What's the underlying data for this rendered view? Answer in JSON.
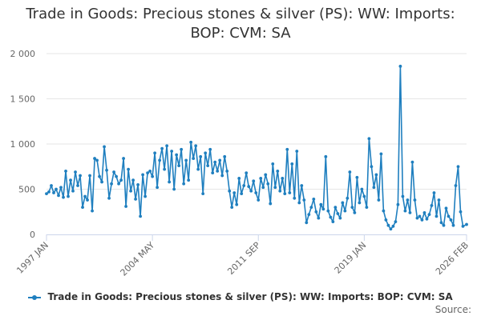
{
  "title_line1": "Trade in Goods: Precious stones & silver (PS): WW: Imports:",
  "title_line2": "BOP: CVM: SA",
  "source_label": "Source:",
  "colors": {
    "series": "#1f7fbf",
    "grid": "#e6e6e6",
    "axis": "#ccd6eb"
  },
  "chart_data": {
    "type": "line",
    "title": "Trade in Goods: Precious stones & silver (PS): WW: Imports: BOP: CVM: SA",
    "x_range": [
      "1997 JAN",
      "2026 FEB"
    ],
    "x_tick_labels": [
      "1997 JAN",
      "2004 MAY",
      "2011 SEP",
      "2019 JAN",
      "2026 FEB"
    ],
    "y_ticks": [
      0,
      500,
      1000,
      1500,
      2000
    ],
    "y_tick_labels": [
      "0",
      "500",
      "1 000",
      "1 500",
      "2 000"
    ],
    "ylim": [
      0,
      2000
    ],
    "grid": true,
    "legend_position": "bottom",
    "series": [
      {
        "name": "Trade in Goods: Precious stones & silver (PS): WW: Imports: BOP: CVM: SA",
        "points": [
          [
            "1997 JAN",
            450
          ],
          [
            "1997 MAR",
            470
          ],
          [
            "1997 MAY",
            540
          ],
          [
            "1997 JUL",
            460
          ],
          [
            "1997 SEP",
            500
          ],
          [
            "1997 NOV",
            430
          ],
          [
            "1998 JAN",
            520
          ],
          [
            "1998 MAR",
            410
          ],
          [
            "1998 MAY",
            700
          ],
          [
            "1998 JUL",
            420
          ],
          [
            "1998 SEP",
            600
          ],
          [
            "1998 NOV",
            480
          ],
          [
            "1999 JAN",
            690
          ],
          [
            "1999 MAR",
            540
          ],
          [
            "1999 MAY",
            650
          ],
          [
            "1999 JUL",
            300
          ],
          [
            "1999 SEP",
            420
          ],
          [
            "1999 NOV",
            380
          ],
          [
            "2000 JAN",
            650
          ],
          [
            "2000 MAR",
            260
          ],
          [
            "2000 MAY",
            840
          ],
          [
            "2000 JUL",
            820
          ],
          [
            "2000 SEP",
            640
          ],
          [
            "2000 NOV",
            580
          ],
          [
            "2001 JAN",
            970
          ],
          [
            "2001 MAR",
            710
          ],
          [
            "2001 MAY",
            400
          ],
          [
            "2001 JUL",
            560
          ],
          [
            "2001 SEP",
            690
          ],
          [
            "2001 NOV",
            640
          ],
          [
            "2002 JAN",
            560
          ],
          [
            "2002 MAR",
            600
          ],
          [
            "2002 MAY",
            840
          ],
          [
            "2002 JUL",
            310
          ],
          [
            "2002 SEP",
            720
          ],
          [
            "2002 NOV",
            480
          ],
          [
            "2003 JAN",
            600
          ],
          [
            "2003 MAR",
            390
          ],
          [
            "2003 MAY",
            550
          ],
          [
            "2003 JUL",
            200
          ],
          [
            "2003 SEP",
            660
          ],
          [
            "2003 NOV",
            420
          ],
          [
            "2004 JAN",
            680
          ],
          [
            "2004 MAR",
            700
          ],
          [
            "2004 MAY",
            640
          ],
          [
            "2004 JUL",
            900
          ],
          [
            "2004 SEP",
            520
          ],
          [
            "2004 NOV",
            820
          ],
          [
            "2005 JAN",
            950
          ],
          [
            "2005 MAR",
            720
          ],
          [
            "2005 MAY",
            980
          ],
          [
            "2005 JUL",
            580
          ],
          [
            "2005 SEP",
            920
          ],
          [
            "2005 NOV",
            500
          ],
          [
            "2006 JAN",
            880
          ],
          [
            "2006 MAR",
            760
          ],
          [
            "2006 MAY",
            940
          ],
          [
            "2006 JUL",
            560
          ],
          [
            "2006 SEP",
            820
          ],
          [
            "2006 NOV",
            600
          ],
          [
            "2007 JAN",
            1020
          ],
          [
            "2007 MAR",
            840
          ],
          [
            "2007 MAY",
            980
          ],
          [
            "2007 JUL",
            720
          ],
          [
            "2007 SEP",
            860
          ],
          [
            "2007 NOV",
            450
          ],
          [
            "2008 JAN",
            900
          ],
          [
            "2008 MAR",
            760
          ],
          [
            "2008 MAY",
            940
          ],
          [
            "2008 JUL",
            680
          ],
          [
            "2008 SEP",
            800
          ],
          [
            "2008 NOV",
            700
          ],
          [
            "2009 JAN",
            820
          ],
          [
            "2009 MAR",
            650
          ],
          [
            "2009 MAY",
            860
          ],
          [
            "2009 JUL",
            700
          ],
          [
            "2009 SEP",
            480
          ],
          [
            "2009 NOV",
            300
          ],
          [
            "2010 JAN",
            460
          ],
          [
            "2010 MAR",
            330
          ],
          [
            "2010 MAY",
            620
          ],
          [
            "2010 JUL",
            450
          ],
          [
            "2010 SEP",
            540
          ],
          [
            "2010 NOV",
            680
          ],
          [
            "2011 JAN",
            530
          ],
          [
            "2011 MAR",
            480
          ],
          [
            "2011 MAY",
            590
          ],
          [
            "2011 JUL",
            460
          ],
          [
            "2011 SEP",
            380
          ],
          [
            "2011 NOV",
            620
          ],
          [
            "2012 JAN",
            520
          ],
          [
            "2012 MAR",
            660
          ],
          [
            "2012 MAY",
            560
          ],
          [
            "2012 JUL",
            340
          ],
          [
            "2012 SEP",
            780
          ],
          [
            "2012 NOV",
            520
          ],
          [
            "2013 JAN",
            700
          ],
          [
            "2013 MAR",
            480
          ],
          [
            "2013 MAY",
            620
          ],
          [
            "2013 JUL",
            450
          ],
          [
            "2013 SEP",
            940
          ],
          [
            "2013 NOV",
            460
          ],
          [
            "2014 JAN",
            780
          ],
          [
            "2014 MAR",
            400
          ],
          [
            "2014 MAY",
            920
          ],
          [
            "2014 JUL",
            350
          ],
          [
            "2014 SEP",
            540
          ],
          [
            "2014 NOV",
            380
          ],
          [
            "2015 JAN",
            130
          ],
          [
            "2015 MAR",
            220
          ],
          [
            "2015 MAY",
            300
          ],
          [
            "2015 JUL",
            390
          ],
          [
            "2015 SEP",
            250
          ],
          [
            "2015 NOV",
            180
          ],
          [
            "2016 JAN",
            330
          ],
          [
            "2016 MAR",
            280
          ],
          [
            "2016 MAY",
            860
          ],
          [
            "2016 JUL",
            260
          ],
          [
            "2016 SEP",
            190
          ],
          [
            "2016 NOV",
            140
          ],
          [
            "2017 JAN",
            300
          ],
          [
            "2017 MAR",
            230
          ],
          [
            "2017 MAY",
            180
          ],
          [
            "2017 JUL",
            350
          ],
          [
            "2017 SEP",
            260
          ],
          [
            "2017 NOV",
            400
          ],
          [
            "2018 JAN",
            690
          ],
          [
            "2018 MAR",
            300
          ],
          [
            "2018 MAY",
            240
          ],
          [
            "2018 JUL",
            630
          ],
          [
            "2018 SEP",
            350
          ],
          [
            "2018 NOV",
            500
          ],
          [
            "2019 JAN",
            420
          ],
          [
            "2019 MAR",
            300
          ],
          [
            "2019 MAY",
            1060
          ],
          [
            "2019 JUL",
            750
          ],
          [
            "2019 SEP",
            520
          ],
          [
            "2019 NOV",
            660
          ],
          [
            "2020 JAN",
            380
          ],
          [
            "2020 MAR",
            890
          ],
          [
            "2020 MAY",
            260
          ],
          [
            "2020 JUL",
            160
          ],
          [
            "2020 SEP",
            100
          ],
          [
            "2020 NOV",
            60
          ],
          [
            "2021 JAN",
            90
          ],
          [
            "2021 MAR",
            140
          ],
          [
            "2021 MAY",
            330
          ],
          [
            "2021 JUL",
            1860
          ],
          [
            "2021 SEP",
            420
          ],
          [
            "2021 NOV",
            260
          ],
          [
            "2022 JAN",
            380
          ],
          [
            "2022 MAR",
            240
          ],
          [
            "2022 MAY",
            800
          ],
          [
            "2022 JUL",
            380
          ],
          [
            "2022 SEP",
            180
          ],
          [
            "2022 NOV",
            200
          ],
          [
            "2023 JAN",
            160
          ],
          [
            "2023 MAR",
            240
          ],
          [
            "2023 MAY",
            170
          ],
          [
            "2023 JUL",
            220
          ],
          [
            "2023 SEP",
            320
          ],
          [
            "2023 NOV",
            460
          ],
          [
            "2024 JAN",
            200
          ],
          [
            "2024 MAR",
            380
          ],
          [
            "2024 MAY",
            130
          ],
          [
            "2024 JUL",
            100
          ],
          [
            "2024 SEP",
            290
          ],
          [
            "2024 NOV",
            200
          ],
          [
            "2025 JAN",
            160
          ],
          [
            "2025 MAR",
            100
          ],
          [
            "2025 MAY",
            540
          ],
          [
            "2025 JUL",
            750
          ],
          [
            "2025 SEP",
            250
          ],
          [
            "2025 NOV",
            90
          ],
          [
            "2026 FEB",
            110
          ]
        ]
      }
    ]
  }
}
